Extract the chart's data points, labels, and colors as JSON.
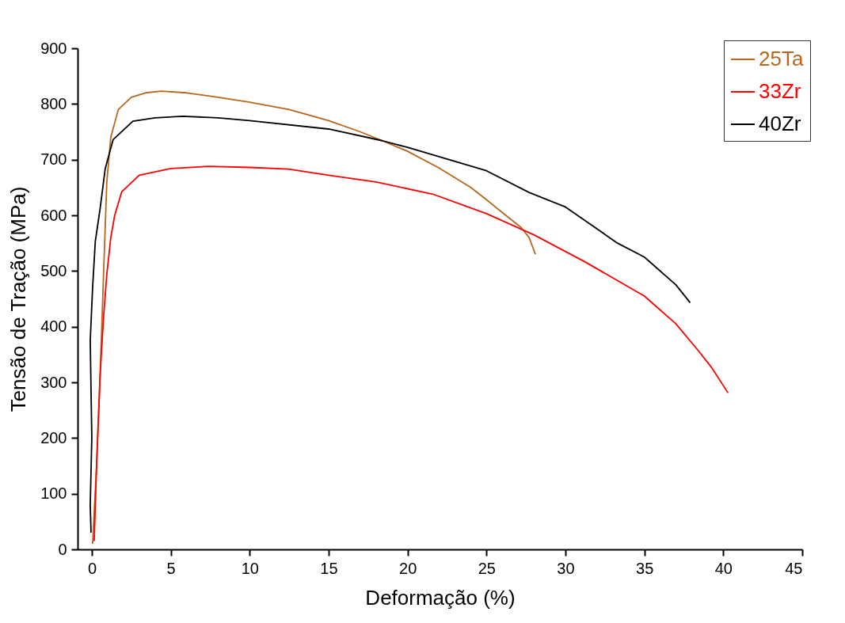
{
  "chart_data": {
    "type": "line",
    "xlabel": "Deformação (%)",
    "ylabel": "Tensão de Tração (MPa)",
    "xlim": [
      -0.9,
      45
    ],
    "ylim": [
      0,
      900
    ],
    "xticks": [
      0,
      5,
      10,
      15,
      20,
      25,
      30,
      35,
      40,
      45
    ],
    "yticks": [
      0,
      100,
      200,
      300,
      400,
      500,
      600,
      700,
      800,
      900
    ],
    "grid": false,
    "legend": "top right",
    "marker": "none",
    "line_style": "solid",
    "series": [
      {
        "name": "25Ta",
        "color": "#b8651e",
        "x": [
          0.05,
          0.3,
          0.53,
          0.75,
          0.95,
          1.2,
          1.68,
          2.5,
          3.4,
          4.4,
          6,
          8,
          10,
          12.5,
          15,
          17,
          18.4,
          20,
          22,
          24,
          25,
          26,
          27.2,
          27.7,
          28.1
        ],
        "values": [
          10,
          150,
          316,
          500,
          660,
          740,
          790,
          812,
          820,
          823,
          820,
          812,
          803,
          790,
          770,
          750,
          734,
          715,
          685,
          650,
          628,
          605,
          578,
          560,
          530
        ]
      },
      {
        "name": "33Zr",
        "color": "#ff0000",
        "x": [
          0.15,
          0.3,
          0.53,
          0.75,
          0.95,
          1.2,
          1.45,
          1.89,
          3.0,
          5,
          7.4,
          10,
          12.46,
          15,
          18,
          21.6,
          25,
          28,
          31.2,
          35,
          37,
          38.5,
          39.3,
          40.3
        ],
        "values": [
          15,
          150,
          316,
          420,
          494,
          560,
          600,
          642,
          672,
          684,
          688,
          686,
          683,
          672,
          660,
          638,
          603,
          565,
          517,
          455,
          405,
          354,
          325,
          281
        ]
      },
      {
        "name": "40Zr",
        "color": "#000000",
        "x": [
          -0.05,
          -0.1,
          0.0,
          -0.1,
          0.05,
          0.22,
          0.53,
          0.85,
          1.35,
          2.6,
          4,
          5.75,
          8,
          10,
          15,
          18.4,
          20,
          25,
          27.7,
          30,
          33.3,
          35,
          37,
          37.9
        ],
        "values": [
          30,
          80,
          200,
          375,
          470,
          553,
          613,
          684,
          736,
          769,
          775,
          778,
          775,
          770,
          755,
          734,
          722,
          680,
          641,
          615,
          550,
          525,
          475,
          443
        ]
      }
    ]
  }
}
